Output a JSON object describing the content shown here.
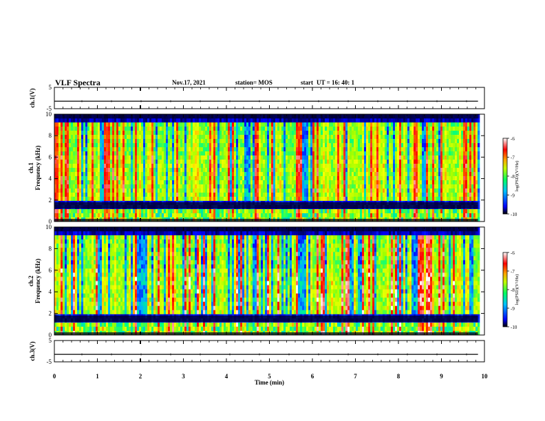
{
  "header": {
    "title": "VLF Spectra",
    "date": "Nov.17, 2021",
    "station": "station= MOS",
    "start_label": "start",
    "start_ut": "UT =   16: 40: 1"
  },
  "chart_data": [
    {
      "type": "line",
      "panel": "ch1-waveform",
      "ylabel": "ch.1(V)",
      "ylim": [
        -5,
        5
      ],
      "yticks": [
        "5",
        "-5"
      ],
      "xlim": [
        0,
        10
      ],
      "series": [
        {
          "x": [
            0,
            9.85
          ],
          "values": [
            -1.5,
            -1.5
          ]
        }
      ]
    },
    {
      "type": "heatmap",
      "panel": "ch1-spectrogram",
      "ylabel": "ch.1 Frequency (kHz)",
      "ylim": [
        0,
        10
      ],
      "yticks": [
        "0",
        "2",
        "4",
        "6",
        "8",
        "10"
      ],
      "xlim": [
        0,
        10
      ],
      "data_end_min": 9.85,
      "colorbar": {
        "label": "log(PSD)(V²/Hz)",
        "range": [
          -10,
          -6
        ],
        "ticks": [
          "-6",
          "-7",
          "-8",
          "-9",
          "-10"
        ]
      }
    },
    {
      "type": "heatmap",
      "panel": "ch2-spectrogram",
      "ylabel": "ch.2 Frequency (kHz)",
      "ylim": [
        0,
        10
      ],
      "yticks": [
        "0",
        "2",
        "4",
        "6",
        "8",
        "10"
      ],
      "xlim": [
        0,
        10
      ],
      "data_end_min": 9.85,
      "colorbar": {
        "label": "log(PSD)(V²/Hz)",
        "range": [
          -10,
          -6
        ],
        "ticks": [
          "-6",
          "-7",
          "-8",
          "-9",
          "-10"
        ]
      }
    },
    {
      "type": "line",
      "panel": "ch3-waveform",
      "ylabel": "ch.3(V)",
      "ylim": [
        -5,
        5
      ],
      "yticks": [
        "5",
        "-5"
      ],
      "xlim": [
        0,
        10
      ],
      "series": [
        {
          "x": [
            0,
            9.85
          ],
          "values": [
            -1.5,
            -1.5
          ]
        }
      ]
    }
  ],
  "xaxis": {
    "label": "Time (min)",
    "ticks": [
      "0",
      "1",
      "2",
      "3",
      "4",
      "5",
      "6",
      "7",
      "8",
      "9",
      "10"
    ]
  },
  "colors": {
    "colormap": [
      "#00003a",
      "#0000ff",
      "#00b0ff",
      "#00ff80",
      "#a0ff00",
      "#ffff00",
      "#ff8000",
      "#ff0000",
      "#ffffff"
    ]
  }
}
